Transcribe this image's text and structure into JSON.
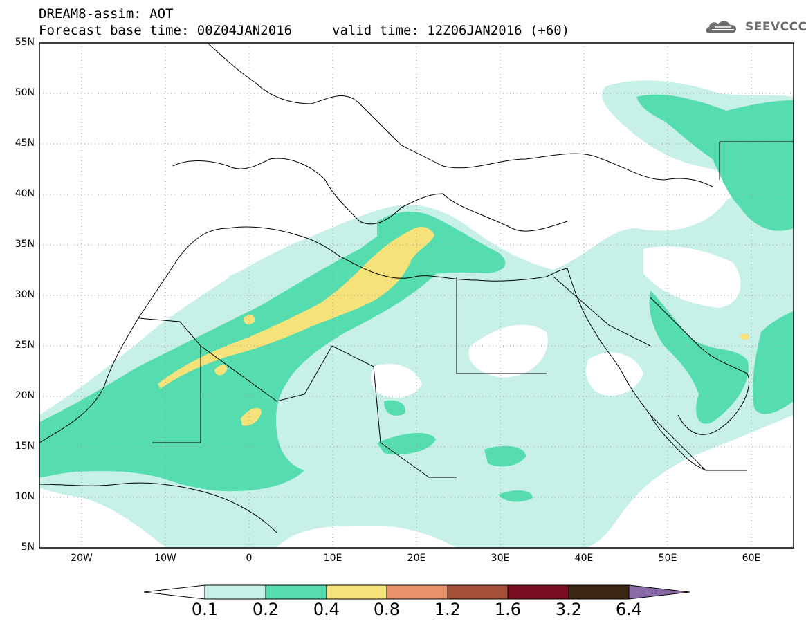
{
  "title": {
    "line1": "DREAM8-assim: AOT",
    "line2_left": "Forecast base time: 00Z04JAN2016",
    "line2_right": "valid time: 12Z06JAN2016 (+60)"
  },
  "logo": {
    "text": "SEEVCCC",
    "icon": "cloud-logo-icon"
  },
  "map": {
    "lon_range": [
      -25,
      65
    ],
    "lat_range": [
      5,
      55
    ],
    "lat_labels": [
      "55N",
      "50N",
      "45N",
      "40N",
      "35N",
      "30N",
      "25N",
      "20N",
      "15N",
      "10N",
      "5N"
    ],
    "lon_labels": [
      "20W",
      "10W",
      "0",
      "10E",
      "20E",
      "30E",
      "40E",
      "50E",
      "60E"
    ],
    "grid": "dotted",
    "field": "Aerosol Optical Thickness (AOT)"
  },
  "colorbar": {
    "labels": [
      "0.1",
      "0.2",
      "0.4",
      "0.8",
      "1.2",
      "1.6",
      "3.2",
      "6.4"
    ],
    "colors": [
      "#c6f0e8",
      "#55ddb0",
      "#f5e27a",
      "#e7926a",
      "#a6503a",
      "#7b0f22",
      "#3b2616",
      "#8a6aa6"
    ],
    "below_color": "#ffffff"
  }
}
